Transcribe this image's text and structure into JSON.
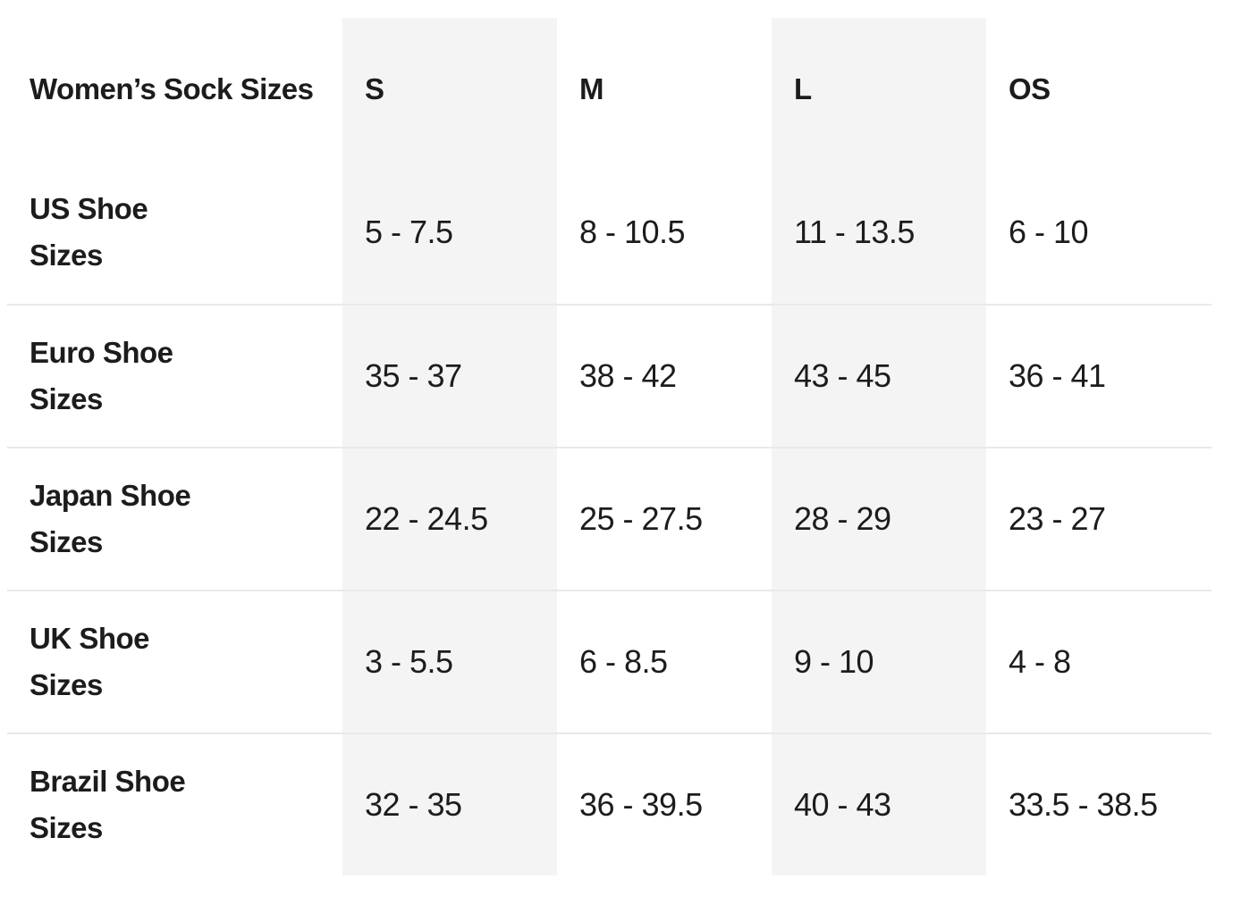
{
  "colors": {
    "text": "#1c1c1e",
    "shaded_column_bg": "#f4f4f4",
    "divider_line": "#e9e9e9",
    "page_background": "#ffffff"
  },
  "chart_data": {
    "type": "table",
    "title": "Women’s Sock Sizes",
    "columns": [
      "S",
      "M",
      "L",
      "OS"
    ],
    "shaded_columns": [
      "S",
      "L"
    ],
    "rows": [
      {
        "label": "US Shoe Sizes",
        "label_display": "US Shoe\nSizes",
        "values": [
          "5 - 7.5",
          "8 - 10.5",
          "11 - 13.5",
          "6 - 10"
        ]
      },
      {
        "label": "Euro Shoe Sizes",
        "label_display": "Euro Shoe\nSizes",
        "values": [
          "35 - 37",
          "38 - 42",
          "43 - 45",
          "36 - 41"
        ]
      },
      {
        "label": "Japan Shoe Sizes",
        "label_display": "Japan Shoe\nSizes",
        "values": [
          "22 - 24.5",
          "25 - 27.5",
          "28 - 29",
          "23 - 27"
        ]
      },
      {
        "label": "UK Shoe Sizes",
        "label_display": "UK Shoe\nSizes",
        "values": [
          "3 - 5.5",
          "6 - 8.5",
          "9 - 10",
          "4 - 8"
        ]
      },
      {
        "label": "Brazil Shoe Sizes",
        "label_display": "Brazil Shoe\nSizes",
        "values": [
          "32 - 35",
          "36 - 39.5",
          "40 - 43",
          "33.5 - 38.5"
        ]
      }
    ]
  }
}
